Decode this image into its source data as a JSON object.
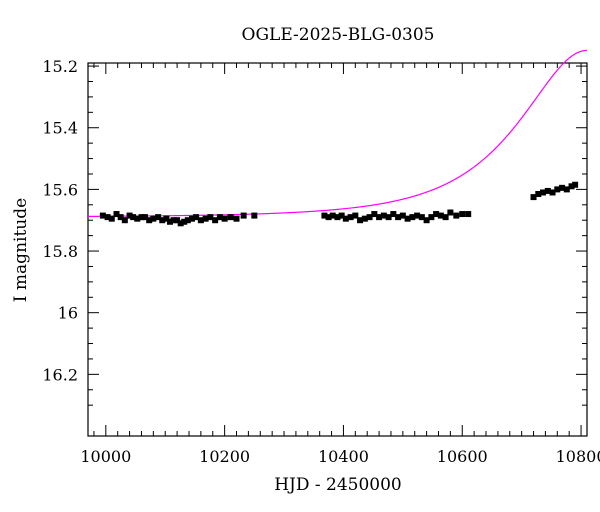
{
  "chart_data": {
    "type": "scatter",
    "title": "OGLE-2025-BLG-0305",
    "xlabel": "HJD - 2450000",
    "ylabel": "I magnitude",
    "xlim": [
      9970,
      10810
    ],
    "ylim": [
      16.4,
      15.19
    ],
    "y_inverted": true,
    "grid": false,
    "x_ticks": [
      10000,
      10200,
      10400,
      10600,
      10800
    ],
    "x_tick_labels": [
      "10000",
      "10200",
      "10400",
      "10600",
      "10800"
    ],
    "y_ticks": [
      15.2,
      15.4,
      15.6,
      15.8,
      16.0,
      16.2
    ],
    "y_tick_labels": [
      "15.2",
      "15.4",
      "15.6",
      "15.8",
      "16",
      "16.2"
    ],
    "series": [
      {
        "kind": "points",
        "color": "#000000",
        "x": [
          9995,
          10003,
          10010,
          10018,
          10025,
          10032,
          10040,
          10046,
          10053,
          10060,
          10066,
          10073,
          10080,
          10088,
          10095,
          10102,
          10108,
          10114,
          10120,
          10126,
          10132,
          10138,
          10145,
          10152,
          10160,
          10168,
          10176,
          10184,
          10192,
          10200,
          10210,
          10220,
          10232,
          10250,
          10368,
          10375,
          10382,
          10390,
          10397,
          10404,
          10412,
          10420,
          10428,
          10436,
          10444,
          10452,
          10460,
          10468,
          10476,
          10484,
          10492,
          10500,
          10508,
          10516,
          10524,
          10532,
          10540,
          10548,
          10556,
          10564,
          10572,
          10580,
          10590,
          10600,
          10610,
          10720,
          10728,
          10736,
          10744,
          10752,
          10760,
          10768,
          10776,
          10784,
          10790
        ],
        "y": [
          15.685,
          15.69,
          15.695,
          15.68,
          15.69,
          15.7,
          15.685,
          15.69,
          15.695,
          15.69,
          15.69,
          15.7,
          15.695,
          15.69,
          15.7,
          15.695,
          15.705,
          15.7,
          15.7,
          15.71,
          15.705,
          15.7,
          15.695,
          15.69,
          15.7,
          15.695,
          15.69,
          15.7,
          15.69,
          15.695,
          15.69,
          15.695,
          15.685,
          15.685,
          15.685,
          15.69,
          15.685,
          15.69,
          15.685,
          15.695,
          15.69,
          15.685,
          15.7,
          15.695,
          15.69,
          15.68,
          15.69,
          15.685,
          15.69,
          15.68,
          15.69,
          15.685,
          15.695,
          15.69,
          15.685,
          15.69,
          15.7,
          15.69,
          15.68,
          15.685,
          15.69,
          15.675,
          15.685,
          15.68,
          15.68,
          15.625,
          15.615,
          15.61,
          15.605,
          15.61,
          15.6,
          15.595,
          15.6,
          15.59,
          15.585
        ]
      },
      {
        "kind": "model-curve",
        "color": "#ff00ff",
        "t0": 10810,
        "u0": 0.72,
        "tE": 160,
        "baseline": 15.69
      }
    ]
  }
}
